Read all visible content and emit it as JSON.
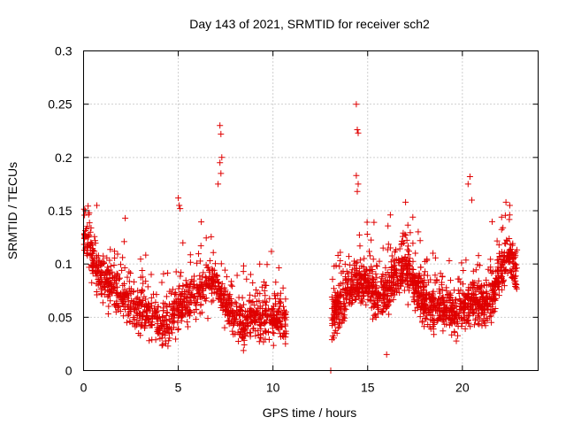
{
  "chart_data": {
    "type": "scatter",
    "title": "Day 143 of 2021, SRMTID for receiver sch2",
    "xlabel": "GPS time / hours",
    "ylabel": "SRMTID / TECUs",
    "xlim": [
      0,
      24
    ],
    "ylim": [
      0,
      0.3
    ],
    "x_ticks": [
      0,
      5,
      10,
      15,
      20
    ],
    "x_tick_labels": [
      "0",
      "5",
      "10",
      "15",
      "20"
    ],
    "y_ticks": [
      0,
      0.05,
      0.1,
      0.15,
      0.2,
      0.25,
      0.3
    ],
    "y_tick_labels": [
      "0",
      "0.05",
      "0.1",
      "0.15",
      "0.2",
      "0.25",
      "0.3"
    ],
    "grid": true,
    "marker": "plus",
    "color": "#e00000",
    "series": [
      {
        "name": "SRMTID",
        "profile": [
          [
            0.0,
            0.135
          ],
          [
            0.5,
            0.105
          ],
          [
            1.0,
            0.085
          ],
          [
            1.5,
            0.08
          ],
          [
            2.0,
            0.07
          ],
          [
            2.5,
            0.065
          ],
          [
            3.0,
            0.055
          ],
          [
            3.5,
            0.05
          ],
          [
            4.0,
            0.045
          ],
          [
            4.5,
            0.045
          ],
          [
            5.0,
            0.06
          ],
          [
            5.5,
            0.065
          ],
          [
            6.0,
            0.07
          ],
          [
            6.5,
            0.08
          ],
          [
            7.0,
            0.085
          ],
          [
            7.5,
            0.06
          ],
          [
            8.0,
            0.05
          ],
          [
            8.5,
            0.045
          ],
          [
            9.0,
            0.05
          ],
          [
            9.5,
            0.05
          ],
          [
            10.0,
            0.05
          ],
          [
            10.7,
            0.05
          ]
        ],
        "profile2": [
          [
            13.1,
            0.05
          ],
          [
            13.5,
            0.06
          ],
          [
            14.0,
            0.075
          ],
          [
            14.5,
            0.085
          ],
          [
            15.0,
            0.08
          ],
          [
            15.5,
            0.07
          ],
          [
            16.0,
            0.075
          ],
          [
            16.5,
            0.09
          ],
          [
            17.0,
            0.1
          ],
          [
            17.5,
            0.08
          ],
          [
            18.0,
            0.065
          ],
          [
            18.5,
            0.06
          ],
          [
            19.0,
            0.06
          ],
          [
            19.5,
            0.055
          ],
          [
            20.0,
            0.06
          ],
          [
            20.5,
            0.065
          ],
          [
            21.0,
            0.06
          ],
          [
            21.5,
            0.065
          ],
          [
            22.0,
            0.09
          ],
          [
            22.5,
            0.11
          ],
          [
            22.9,
            0.085
          ]
        ],
        "spikes": [
          [
            0.1,
            0.15
          ],
          [
            0.3,
            0.148
          ],
          [
            0.7,
            0.155
          ],
          [
            2.2,
            0.143
          ],
          [
            5.0,
            0.162
          ],
          [
            5.05,
            0.155
          ],
          [
            5.1,
            0.152
          ],
          [
            7.2,
            0.23
          ],
          [
            7.25,
            0.222
          ],
          [
            7.3,
            0.2
          ],
          [
            7.2,
            0.195
          ],
          [
            7.25,
            0.185
          ],
          [
            7.1,
            0.175
          ],
          [
            9.3,
            0.1
          ],
          [
            9.6,
            0.08
          ],
          [
            13.05,
            0.0
          ],
          [
            14.4,
            0.25
          ],
          [
            14.45,
            0.226
          ],
          [
            14.5,
            0.223
          ],
          [
            14.4,
            0.183
          ],
          [
            14.5,
            0.175
          ],
          [
            14.45,
            0.168
          ],
          [
            16.2,
            0.146
          ],
          [
            17.0,
            0.158
          ],
          [
            20.4,
            0.182
          ],
          [
            20.3,
            0.175
          ],
          [
            20.5,
            0.16
          ],
          [
            22.3,
            0.158
          ],
          [
            22.5,
            0.155
          ],
          [
            16.0,
            0.015
          ]
        ]
      }
    ]
  }
}
